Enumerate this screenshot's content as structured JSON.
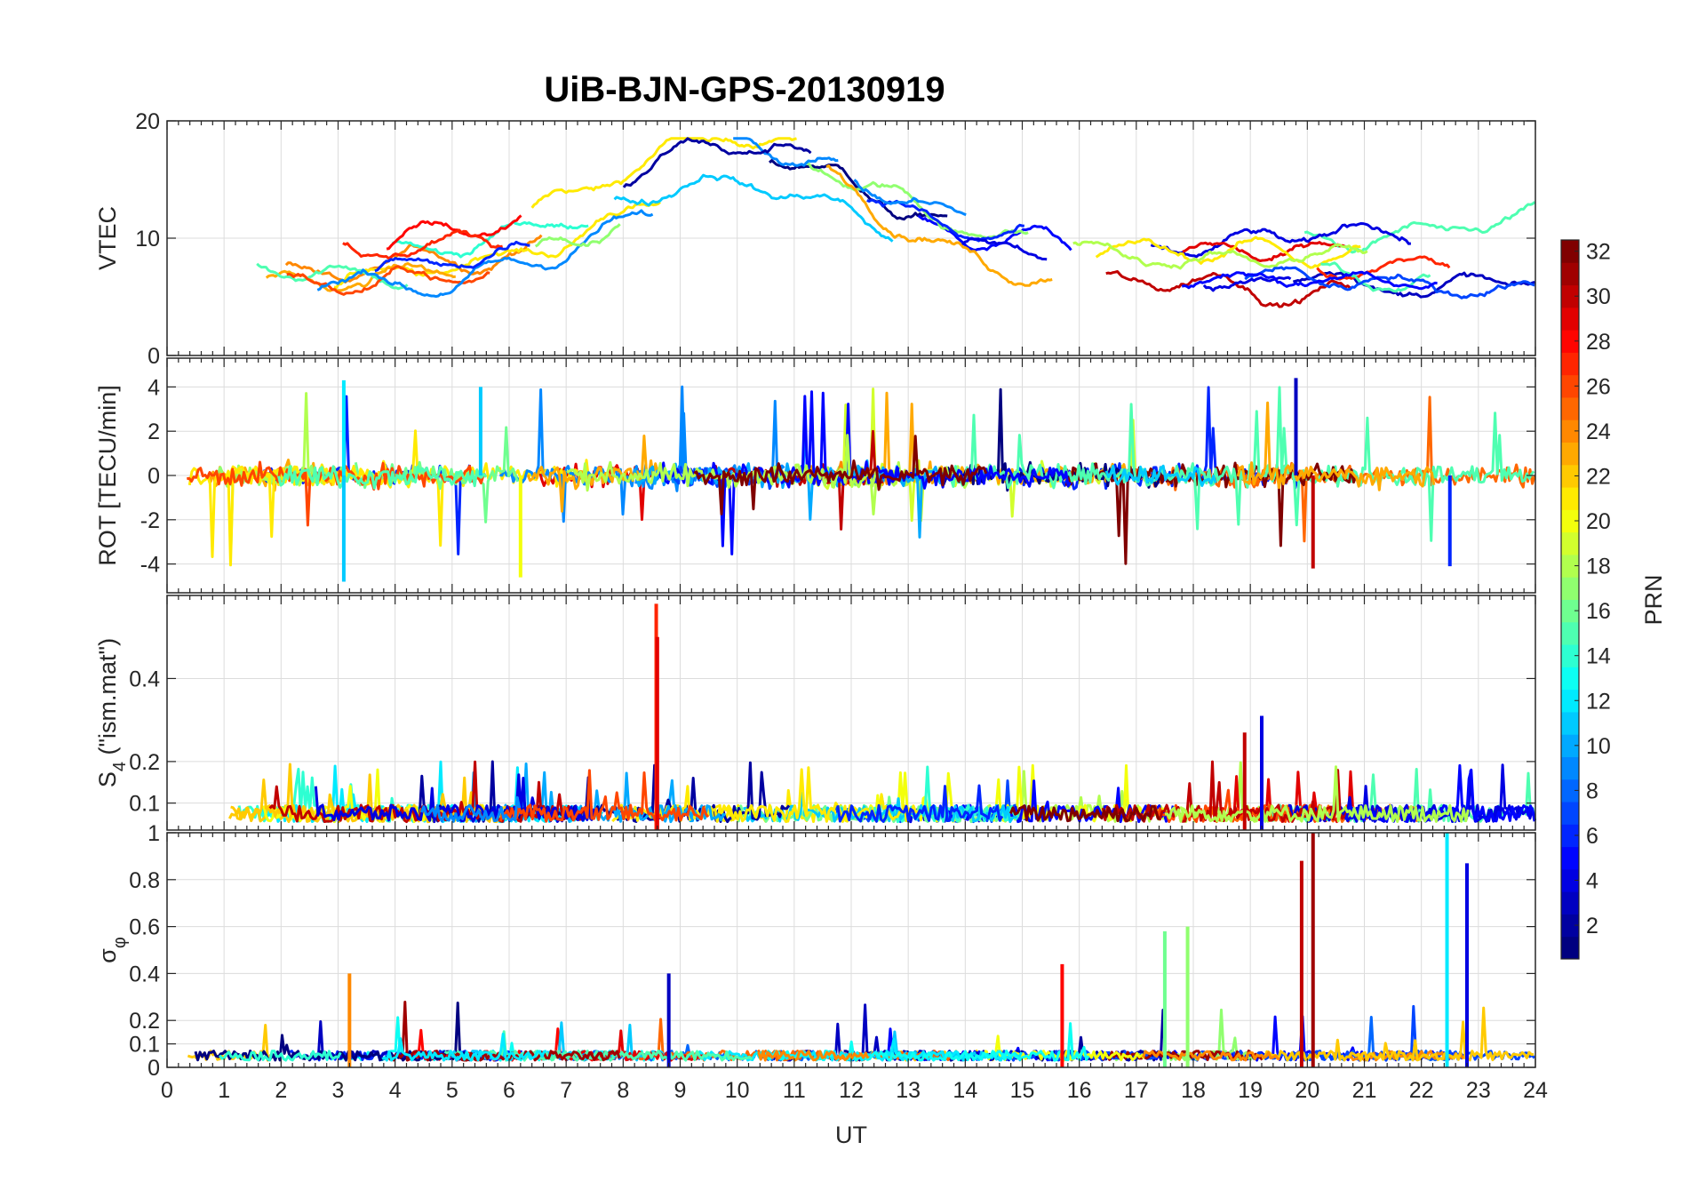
{
  "chart_data": {
    "type": "line",
    "title": "UiB-BJN-GPS-20130919",
    "xlabel": "UT",
    "xlim": [
      0,
      24
    ],
    "xticks": [
      "0",
      "1",
      "2",
      "3",
      "4",
      "5",
      "6",
      "7",
      "8",
      "9",
      "10",
      "11",
      "12",
      "13",
      "14",
      "15",
      "16",
      "17",
      "18",
      "19",
      "20",
      "21",
      "22",
      "23",
      "24"
    ],
    "colorbar": {
      "label": "PRN",
      "range": [
        1,
        32
      ],
      "ticks": [
        "2",
        "4",
        "6",
        "8",
        "10",
        "12",
        "14",
        "16",
        "18",
        "20",
        "22",
        "24",
        "26",
        "28",
        "30",
        "32"
      ]
    },
    "panels": [
      {
        "id": "vtec",
        "ylabel": "VTEC",
        "ylim": [
          0,
          20
        ],
        "yticks": [
          "0",
          "10",
          "20"
        ],
        "yticks_values": [
          0,
          10,
          20
        ],
        "series_summary": "Multiple PRN satellite arcs; values mostly 4-12, rising to ~18 near 9.6 UT"
      },
      {
        "id": "rot",
        "ylabel": "ROT [TECU/min]",
        "ylim": [
          -5.3,
          5.3
        ],
        "yticks": [
          "-4",
          "-2",
          "0",
          "2",
          "4"
        ],
        "yticks_values": [
          -4,
          -2,
          0,
          2,
          4
        ],
        "series_summary": "Fluctuations around 0, spikes to +/-4"
      },
      {
        "id": "s4",
        "ylabel_main": "S",
        "ylabel_sub": "4",
        "ylabel_rest": " (\"ism.mat\")",
        "ylim": [
          0.035,
          0.6
        ],
        "yticks": [
          "0.1",
          "0.2",
          "0.4"
        ],
        "yticks_values": [
          0.1,
          0.2,
          0.4
        ],
        "series_summary": "Mostly 0.05-0.15, spike ~0.58 at 8.6 UT"
      },
      {
        "id": "sigma",
        "ylabel_main": "σ",
        "ylabel_sub": "φ",
        "ylim": [
          0,
          1
        ],
        "yticks": [
          "0",
          "0.1",
          "0.2",
          "0.4",
          "0.6",
          "0.8",
          "1"
        ],
        "yticks_values": [
          0,
          0.1,
          0.2,
          0.4,
          0.6,
          0.8,
          1
        ],
        "series_summary": "Mostly below 0.1, spikes ~0.9-1.0 near 20 UT and 22.5 UT"
      }
    ]
  }
}
